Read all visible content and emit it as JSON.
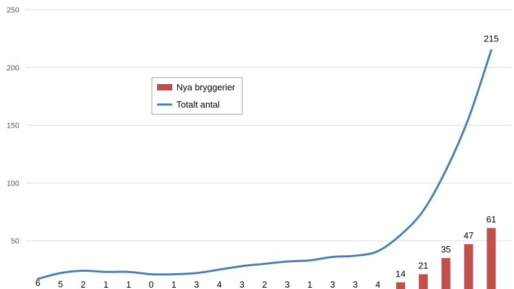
{
  "chart_data": {
    "type": "bar+line",
    "title": "",
    "xlabel": "",
    "ylabel": "",
    "ylim": [
      0,
      250
    ],
    "yticks": [
      50,
      100,
      150,
      200,
      250
    ],
    "grid": true,
    "legend_position": "upper-left-center",
    "series": [
      {
        "name": "Nya bryggerier",
        "type": "bar",
        "color": "#c0504d",
        "values": [
          6,
          5,
          2,
          1,
          1,
          0,
          1,
          3,
          4,
          3,
          2,
          3,
          1,
          3,
          3,
          4,
          14,
          21,
          35,
          47,
          61
        ]
      },
      {
        "name": "Totalt antal",
        "type": "line",
        "color": "#4a7ebb",
        "values": [
          17,
          22,
          24,
          23,
          23,
          21,
          21,
          22,
          25,
          28,
          30,
          32,
          33,
          36,
          37,
          41,
          55,
          76,
          111,
          156,
          215
        ],
        "end_label": "215"
      }
    ]
  }
}
